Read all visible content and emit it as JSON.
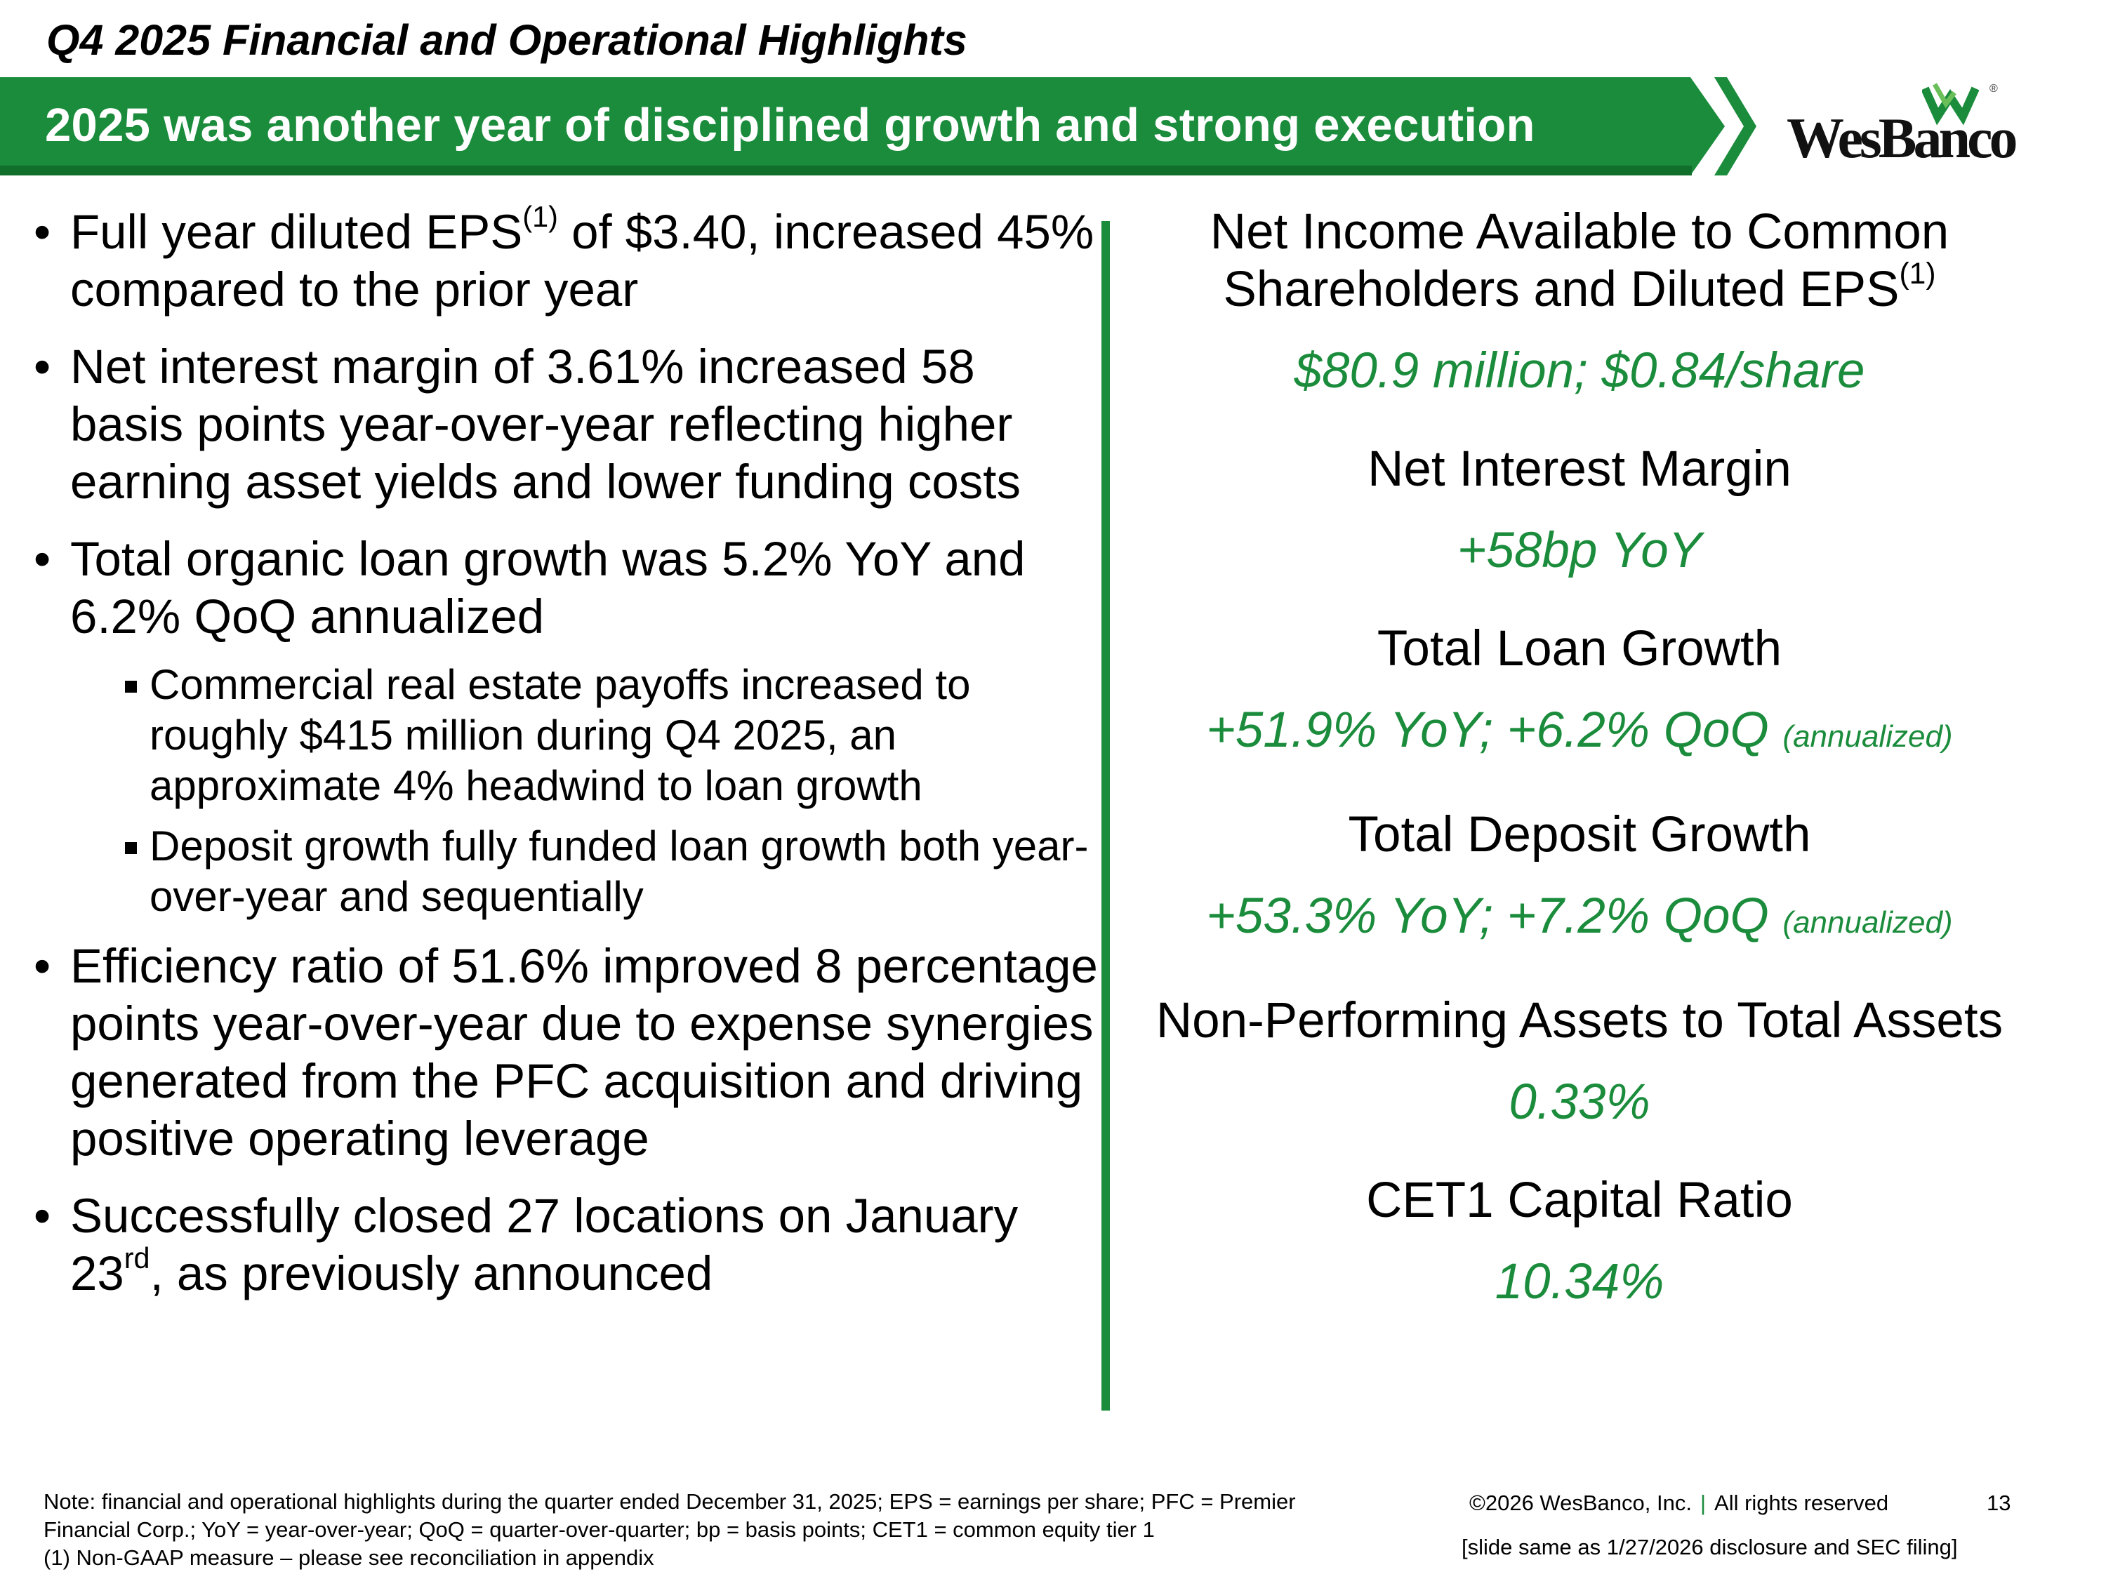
{
  "header": {
    "title": "Q4 2025 Financial and Operational Highlights",
    "banner": "2025 was another year of disciplined growth and strong execution"
  },
  "logo": {
    "text": "WesBanco",
    "registered": "®"
  },
  "left": {
    "bullets": [
      {
        "pre": "Full year diluted EPS",
        "sup": "(1)",
        "post": " of $3.40, increased 45% compared to the prior year"
      },
      {
        "text": "Net interest margin of 3.61% increased 58 basis points year-over-year reflecting higher earning asset yields and lower funding costs"
      },
      {
        "text": "Total organic loan growth was 5.2% YoY and 6.2% QoQ annualized"
      },
      {
        "text": "Efficiency ratio of 51.6% improved 8 percentage points year-over-year due to expense synergies generated from the PFC acquisition and driving positive operating leverage"
      },
      {
        "pre": "Successfully closed 27 locations on January 23",
        "sup": "rd",
        "post": ", as previously announced"
      }
    ],
    "sub_bullets": [
      "Commercial real estate payoffs increased to roughly $415 million during Q4 2025, an approximate 4% headwind to loan growth",
      "Deposit growth fully funded loan growth both year-over-year and sequentially"
    ]
  },
  "metrics": [
    {
      "label": "Net Income Available to Common Shareholders and Diluted EPS",
      "sup": "(1)",
      "value": "$80.9 million; $0.84/share"
    },
    {
      "label": "Net Interest Margin",
      "value": "+58bp YoY"
    },
    {
      "label": "Total Loan Growth",
      "value": "+51.9% YoY; +6.2% QoQ",
      "note": "(annualized)"
    },
    {
      "label": "Total Deposit Growth",
      "value": "+53.3% YoY; +7.2% QoQ",
      "note": "(annualized)"
    },
    {
      "label": "Non-Performing Assets to Total Assets",
      "value": "0.33%"
    },
    {
      "label": "CET1 Capital Ratio",
      "value": "10.34%"
    }
  ],
  "footer": {
    "note_line1": "Note: financial and operational highlights during the quarter ended December 31, 2025; EPS = earnings per share; PFC = Premier",
    "note_line2": "Financial Corp.; YoY = year-over-year; QoQ = quarter-over-quarter; bp = basis points; CET1 = common equity tier 1",
    "note_line3": "(1)    Non-GAAP measure – please see reconciliation in appendix",
    "copyright": "©2026 WesBanco, Inc.",
    "separator": "|",
    "rights": "All rights reserved",
    "page_number": "13",
    "same_note": "[slide same as 1/27/2026 disclosure and SEC filing]"
  },
  "colors": {
    "brand_green": "#1b8c3c",
    "dark_green": "#0f6f2b"
  }
}
